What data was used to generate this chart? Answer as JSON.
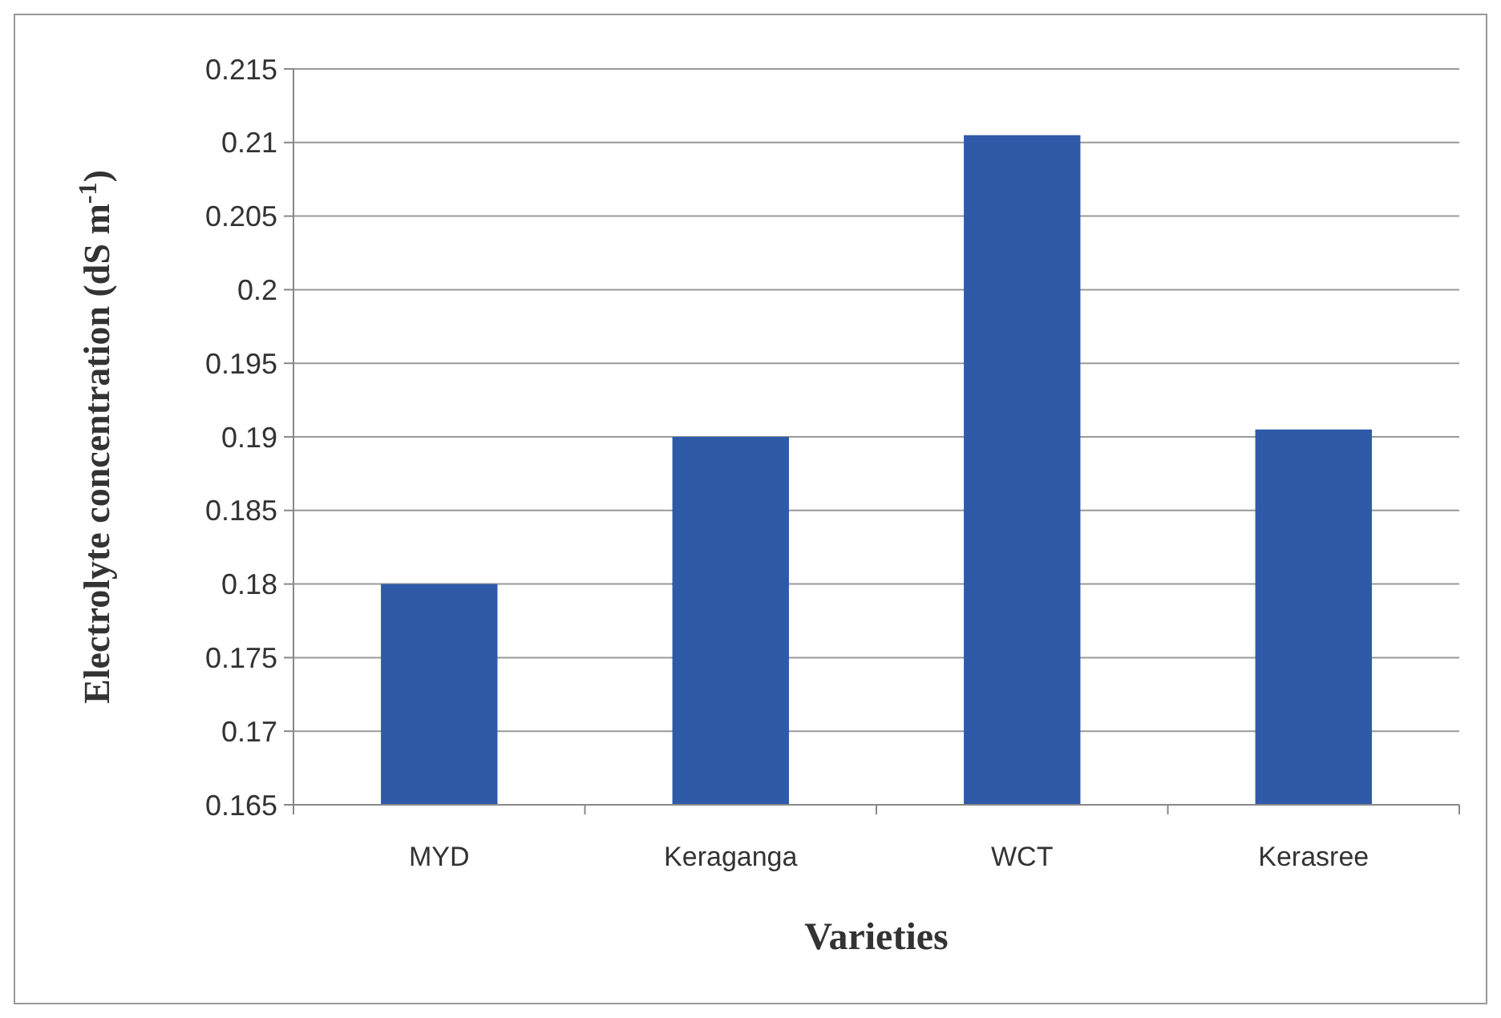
{
  "chart_data": {
    "type": "bar",
    "xlabel": "Varieties",
    "ylabel": "Electrolyte concentration (dS m$^{-1}$)",
    "categories": [
      "MYD",
      "Keraganga",
      "WCT",
      "Kerasree"
    ],
    "values": [
      0.18,
      0.19,
      0.2105,
      0.1905
    ],
    "color": "#2e5aa8",
    "ylim": [
      0.165,
      0.215
    ],
    "yticks": [
      0.165,
      0.17,
      0.175,
      0.18,
      0.185,
      0.19,
      0.195,
      0.2,
      0.205,
      0.21,
      0.215
    ],
    "grid": "y"
  }
}
